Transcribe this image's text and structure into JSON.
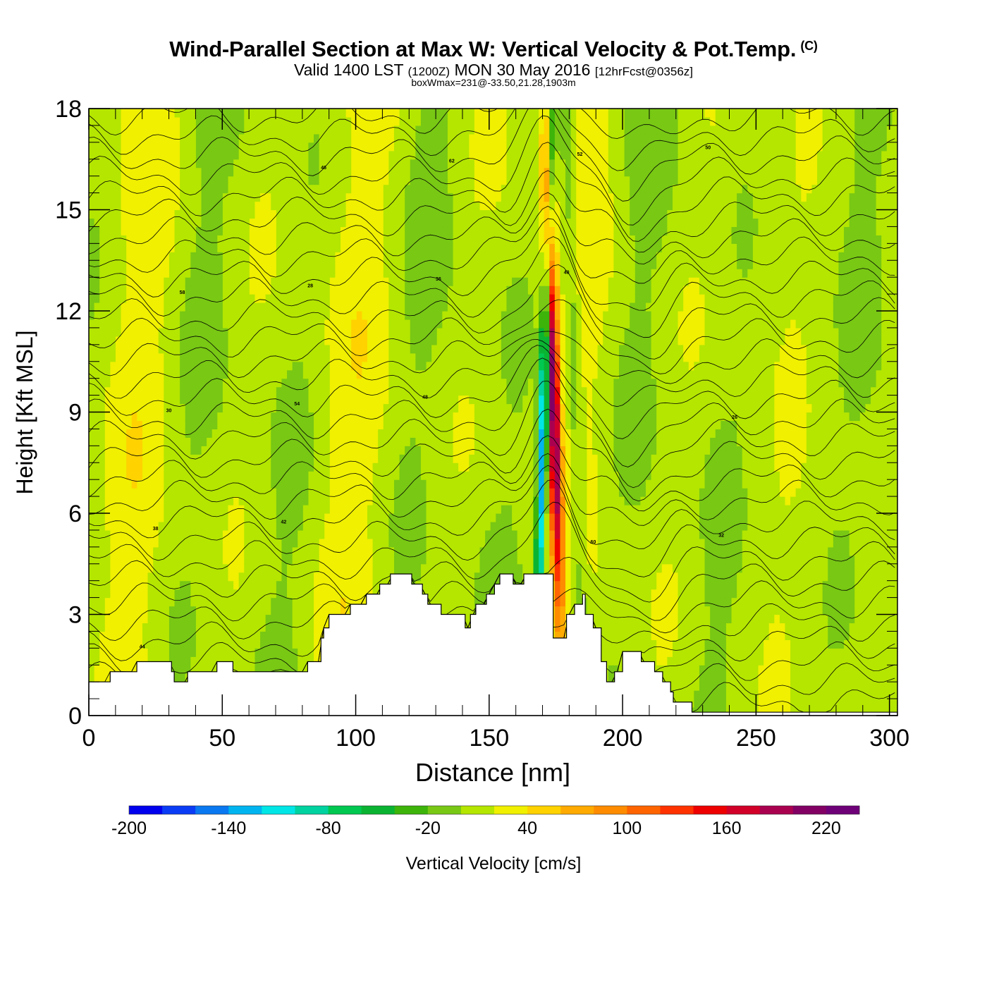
{
  "header": {
    "title": "Wind-Parallel Section at Max W: Vertical Velocity & Pot.Temp.",
    "copyright": "(C)",
    "valid_main": "Valid 1400 LST",
    "valid_utc": "(1200Z)",
    "valid_date": "MON 30 May 2016",
    "forecast": "[12hrFcst@0356z]",
    "subtitle": "boxWmax=231@-33.50,21.28,1903m"
  },
  "chart_data": {
    "type": "heatmap",
    "title": "Wind-Parallel Section at Max W: Vertical Velocity & Pot.Temp.",
    "xlabel": "Distance [nm]",
    "ylabel": "Height [Kft MSL]",
    "xlim": [
      0,
      303
    ],
    "ylim": [
      0,
      18
    ],
    "x_ticks": [
      0,
      50,
      100,
      150,
      200,
      250,
      300
    ],
    "y_ticks": [
      0,
      3,
      6,
      9,
      12,
      15,
      18
    ],
    "x_tick_labels": [
      "0",
      "50",
      "100",
      "150",
      "200",
      "250",
      "300"
    ],
    "y_tick_labels": [
      "0",
      "3",
      "6",
      "9",
      "12",
      "15",
      "18"
    ],
    "colorbar": {
      "label": "Vertical Velocity [cm/s]",
      "min": -200,
      "max": 240,
      "step": 20,
      "tick_labels": [
        "-200",
        "-140",
        "-80",
        "-20",
        "40",
        "100",
        "160",
        "220"
      ],
      "tick_values": [
        -200,
        -140,
        -80,
        -20,
        40,
        100,
        160,
        220
      ],
      "colors": [
        "#0000ee",
        "#0a3cf5",
        "#0a78f0",
        "#00b4f0",
        "#00e6e6",
        "#00d2a0",
        "#00c850",
        "#0ab432",
        "#3cb40a",
        "#78c814",
        "#b4e600",
        "#f0f000",
        "#ffd200",
        "#ffaa00",
        "#ff8c00",
        "#ff6400",
        "#ff3200",
        "#ee0000",
        "#d20028",
        "#aa0050",
        "#820064",
        "#6e0078"
      ]
    },
    "max_updraft": {
      "value": 231,
      "x_nm": 174,
      "height_kft": 9.5
    },
    "max_downdraft_region": {
      "x_nm": 170,
      "height_kft": 7.5,
      "value": -150
    },
    "terrain_kft": [
      [
        0,
        1.0
      ],
      [
        8,
        1.0
      ],
      [
        8,
        1.3
      ],
      [
        18,
        1.3
      ],
      [
        18,
        1.6
      ],
      [
        31,
        1.6
      ],
      [
        31,
        1.3
      ],
      [
        32,
        1.3
      ],
      [
        32,
        1.0
      ],
      [
        37,
        1.0
      ],
      [
        37,
        1.3
      ],
      [
        48,
        1.3
      ],
      [
        48,
        1.6
      ],
      [
        54,
        1.6
      ],
      [
        54,
        1.3
      ],
      [
        82,
        1.3
      ],
      [
        82,
        1.6
      ],
      [
        87,
        1.6
      ],
      [
        87,
        2.3
      ],
      [
        88,
        2.3
      ],
      [
        88,
        2.6
      ],
      [
        90,
        2.6
      ],
      [
        90,
        3.0
      ],
      [
        98,
        3.0
      ],
      [
        98,
        3.3
      ],
      [
        104,
        3.3
      ],
      [
        104,
        3.6
      ],
      [
        109,
        3.6
      ],
      [
        109,
        3.9
      ],
      [
        113,
        3.9
      ],
      [
        113,
        4.2
      ],
      [
        121,
        4.2
      ],
      [
        121,
        3.9
      ],
      [
        125,
        3.9
      ],
      [
        125,
        3.6
      ],
      [
        127,
        3.6
      ],
      [
        127,
        3.3
      ],
      [
        132,
        3.3
      ],
      [
        132,
        3.0
      ],
      [
        141,
        3.0
      ],
      [
        141,
        2.6
      ],
      [
        143,
        2.6
      ],
      [
        143,
        3.0
      ],
      [
        145,
        3.0
      ],
      [
        145,
        3.3
      ],
      [
        149,
        3.3
      ],
      [
        149,
        3.6
      ],
      [
        152,
        3.6
      ],
      [
        152,
        3.9
      ],
      [
        154,
        3.9
      ],
      [
        154,
        4.2
      ],
      [
        159,
        4.2
      ],
      [
        159,
        3.9
      ],
      [
        163,
        3.9
      ],
      [
        163,
        4.2
      ],
      [
        174,
        4.2
      ],
      [
        174,
        2.3
      ],
      [
        179,
        2.3
      ],
      [
        179,
        3.0
      ],
      [
        182,
        3.0
      ],
      [
        182,
        3.3
      ],
      [
        185,
        3.3
      ],
      [
        185,
        3.6
      ],
      [
        186,
        3.6
      ],
      [
        186,
        3.0
      ],
      [
        189,
        3.0
      ],
      [
        189,
        2.6
      ],
      [
        192,
        2.6
      ],
      [
        192,
        1.6
      ],
      [
        194,
        1.6
      ],
      [
        194,
        1.0
      ],
      [
        197,
        1.0
      ],
      [
        197,
        1.3
      ],
      [
        200,
        1.3
      ],
      [
        200,
        1.9
      ],
      [
        207,
        1.9
      ],
      [
        207,
        1.6
      ],
      [
        212,
        1.6
      ],
      [
        212,
        1.3
      ],
      [
        215,
        1.3
      ],
      [
        215,
        1.0
      ],
      [
        218,
        1.0
      ],
      [
        218,
        0.7
      ],
      [
        219,
        0.7
      ],
      [
        219,
        0.4
      ],
      [
        226,
        0.4
      ],
      [
        226,
        0.1
      ],
      [
        303,
        0.1
      ]
    ],
    "theta_contour_labels": [
      "44",
      "42",
      "48",
      "40",
      "50",
      "38",
      "54",
      "36",
      "52",
      "32",
      "30",
      "28",
      "62",
      "60",
      "26",
      "58",
      "46"
    ]
  }
}
